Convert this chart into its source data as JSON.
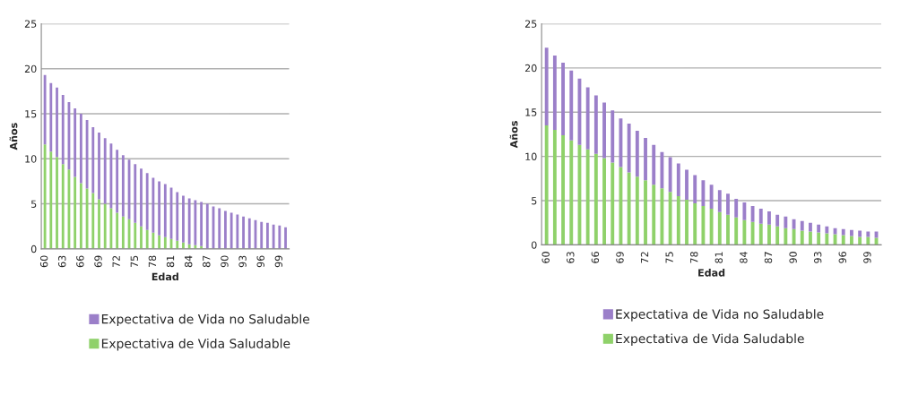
{
  "chart_data": [
    {
      "type": "bar",
      "stacked": true,
      "xlabel": "Edad",
      "ylabel": "Años",
      "ylim": [
        0,
        25
      ],
      "yticks": [
        0,
        5,
        10,
        15,
        20,
        25
      ],
      "grid": "y",
      "legend": "bottom",
      "categories": [
        "60",
        null,
        null,
        "63",
        null,
        null,
        "66",
        null,
        null,
        "69",
        null,
        null,
        "72",
        null,
        null,
        "75",
        null,
        null,
        "78",
        null,
        null,
        "81",
        null,
        null,
        "84",
        null,
        null,
        "87",
        null,
        null,
        "90",
        null,
        null,
        "93",
        null,
        null,
        "96",
        null,
        null,
        "99",
        null
      ],
      "series": [
        {
          "name": "Expectativa de Vida Saludable",
          "color": "#8fd16a",
          "values": [
            11.6,
            10.8,
            10.2,
            9.4,
            8.8,
            8.0,
            7.3,
            6.7,
            6.2,
            5.5,
            5.0,
            4.5,
            4.0,
            3.6,
            3.3,
            2.9,
            2.5,
            2.1,
            1.8,
            1.5,
            1.3,
            1.1,
            0.9,
            0.7,
            0.5,
            0.4,
            0.3,
            0,
            0,
            0,
            0,
            0,
            0,
            0,
            0,
            0,
            0,
            0,
            0,
            0,
            0
          ]
        },
        {
          "name": "Expectativa de Vida no Saludable",
          "color": "#9b7fc9",
          "values": [
            7.7,
            7.6,
            7.7,
            7.7,
            7.5,
            7.6,
            7.7,
            7.6,
            7.3,
            7.4,
            7.3,
            7.2,
            7.0,
            6.8,
            6.6,
            6.5,
            6.4,
            6.3,
            6.1,
            6.0,
            5.9,
            5.7,
            5.4,
            5.2,
            5.1,
            5.0,
            4.9,
            5.0,
            4.7,
            4.5,
            4.2,
            4.0,
            3.8,
            3.6,
            3.4,
            3.2,
            3.0,
            2.9,
            2.7,
            2.6,
            2.4
          ]
        }
      ]
    },
    {
      "type": "bar",
      "stacked": true,
      "xlabel": "Edad",
      "ylabel": "Años",
      "ylim": [
        0,
        25
      ],
      "yticks": [
        0,
        5,
        10,
        15,
        20,
        25
      ],
      "grid": "y",
      "legend": "bottom",
      "categories": [
        "60",
        null,
        null,
        "63",
        null,
        null,
        "66",
        null,
        null,
        "69",
        null,
        null,
        "72",
        null,
        null,
        "75",
        null,
        null,
        "78",
        null,
        null,
        "81",
        null,
        null,
        "84",
        null,
        null,
        "87",
        null,
        null,
        "90",
        null,
        null,
        "93",
        null,
        null,
        "96",
        null,
        null,
        "99",
        null
      ],
      "series": [
        {
          "name": "Expectativa de Vida Saludable",
          "color": "#8fd16a",
          "values": [
            13.5,
            13.0,
            12.4,
            11.8,
            11.3,
            10.8,
            10.3,
            9.8,
            9.3,
            8.8,
            8.2,
            7.7,
            7.3,
            6.8,
            6.4,
            6.0,
            5.5,
            5.1,
            4.7,
            4.4,
            4.1,
            3.7,
            3.4,
            3.1,
            2.8,
            2.6,
            2.4,
            2.3,
            2.1,
            1.9,
            1.8,
            1.6,
            1.5,
            1.4,
            1.3,
            1.2,
            1.1,
            1.0,
            0.9,
            0.9,
            0.8
          ]
        },
        {
          "name": "Expectativa de Vida no Saludable",
          "color": "#9b7fc9",
          "values": [
            8.8,
            8.4,
            8.2,
            7.9,
            7.5,
            7.0,
            6.6,
            6.3,
            5.9,
            5.5,
            5.5,
            5.2,
            4.8,
            4.5,
            4.1,
            3.9,
            3.7,
            3.4,
            3.2,
            2.9,
            2.7,
            2.5,
            2.4,
            2.1,
            2.0,
            1.8,
            1.7,
            1.5,
            1.3,
            1.3,
            1.1,
            1.1,
            1.0,
            0.9,
            0.8,
            0.7,
            0.7,
            0.7,
            0.7,
            0.6,
            0.7
          ]
        }
      ]
    }
  ]
}
